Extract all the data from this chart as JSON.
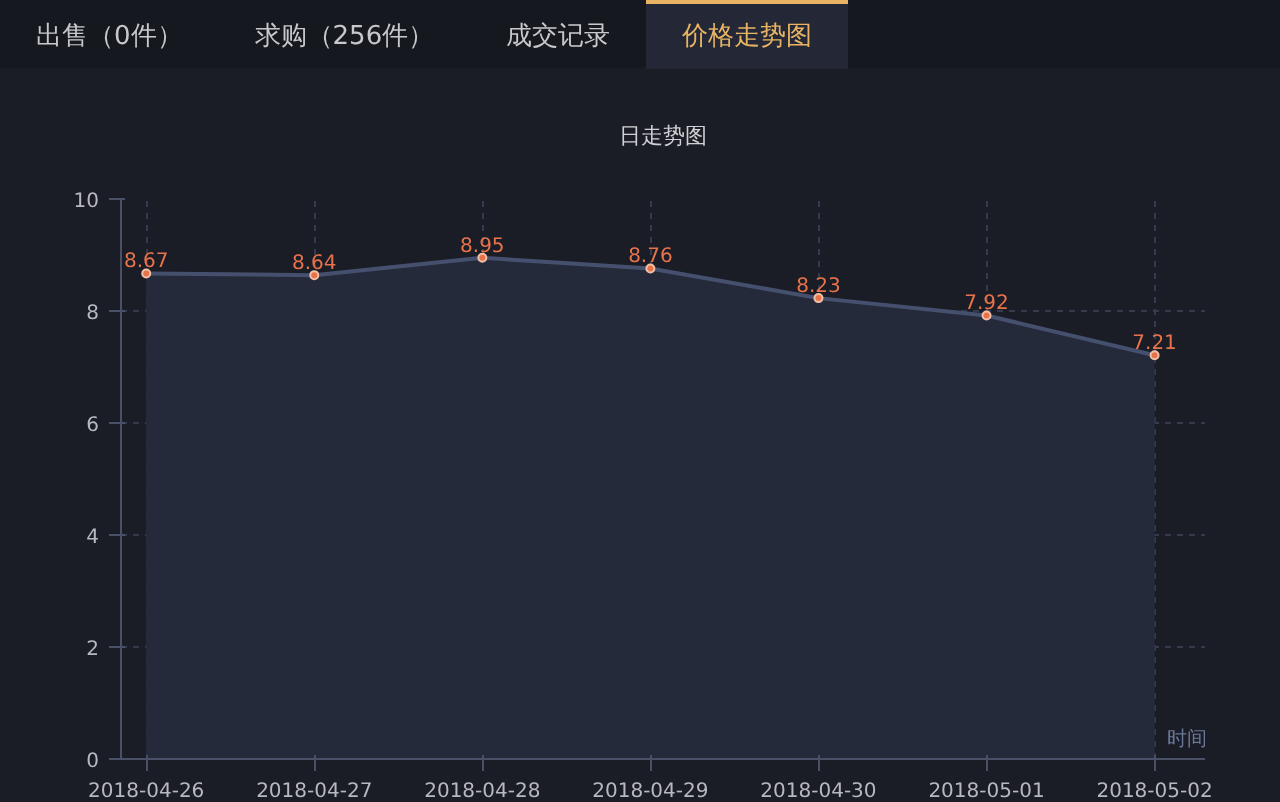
{
  "chart_data": {
    "type": "area",
    "title": "日走势图",
    "xlabel": "时间",
    "annotations": [
      "出售（0件）",
      "求购（256件）",
      "成交记录",
      "价格走势图"
    ],
    "categories": [
      "2018-04-26",
      "2018-04-27",
      "2018-04-28",
      "2018-04-29",
      "2018-04-30",
      "2018-05-01",
      "2018-05-02"
    ],
    "series": [
      {
        "color": "#e8734a",
        "values": [
          8.67,
          8.64,
          8.95,
          8.76,
          8.23,
          7.92,
          7.21
        ]
      }
    ],
    "ylim": [
      0,
      10
    ],
    "yticks": [
      0,
      2,
      4,
      6,
      8,
      10
    ],
    "grid": true,
    "marker": "circle",
    "data_labels": true
  }
}
